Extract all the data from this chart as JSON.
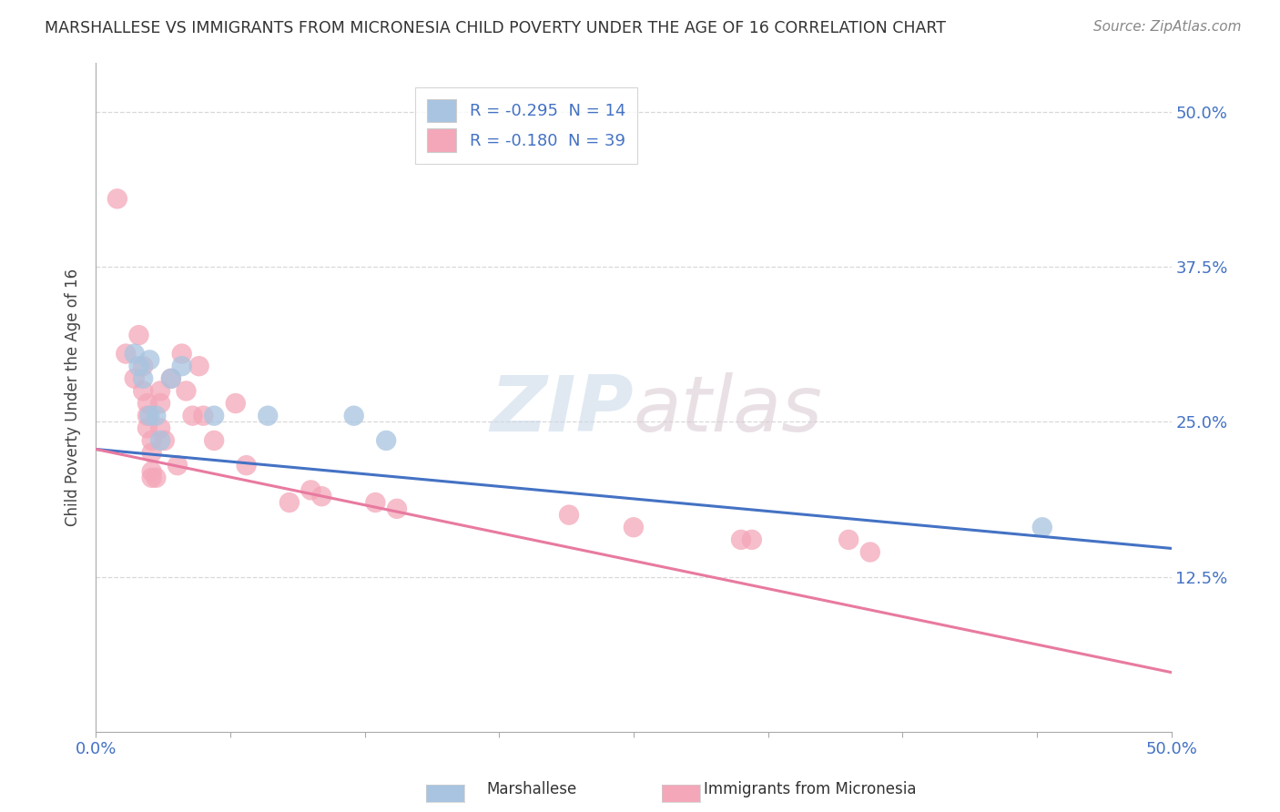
{
  "title": "MARSHALLESE VS IMMIGRANTS FROM MICRONESIA CHILD POVERTY UNDER THE AGE OF 16 CORRELATION CHART",
  "source": "Source: ZipAtlas.com",
  "ylabel": "Child Poverty Under the Age of 16",
  "ytick_labels": [
    "50.0%",
    "37.5%",
    "25.0%",
    "12.5%"
  ],
  "ytick_values": [
    0.5,
    0.375,
    0.25,
    0.125
  ],
  "xlim": [
    0.0,
    0.5
  ],
  "ylim": [
    0.0,
    0.54
  ],
  "watermark_zip": "ZIP",
  "watermark_atlas": "atlas",
  "legend1_label": "R = -0.295  N = 14",
  "legend2_label": "R = -0.180  N = 39",
  "color_blue": "#a8c4e0",
  "color_pink": "#f4a7b9",
  "line_blue": "#4472c4",
  "line_pink": "#e87aa0",
  "blue_scatter": [
    [
      0.018,
      0.305
    ],
    [
      0.02,
      0.295
    ],
    [
      0.022,
      0.285
    ],
    [
      0.025,
      0.3
    ],
    [
      0.025,
      0.255
    ],
    [
      0.028,
      0.255
    ],
    [
      0.03,
      0.235
    ],
    [
      0.035,
      0.285
    ],
    [
      0.04,
      0.295
    ],
    [
      0.055,
      0.255
    ],
    [
      0.08,
      0.255
    ],
    [
      0.12,
      0.255
    ],
    [
      0.135,
      0.235
    ],
    [
      0.44,
      0.165
    ]
  ],
  "pink_scatter": [
    [
      0.01,
      0.43
    ],
    [
      0.014,
      0.305
    ],
    [
      0.018,
      0.285
    ],
    [
      0.02,
      0.32
    ],
    [
      0.022,
      0.295
    ],
    [
      0.022,
      0.275
    ],
    [
      0.024,
      0.265
    ],
    [
      0.024,
      0.255
    ],
    [
      0.024,
      0.245
    ],
    [
      0.026,
      0.235
    ],
    [
      0.026,
      0.225
    ],
    [
      0.026,
      0.21
    ],
    [
      0.026,
      0.205
    ],
    [
      0.028,
      0.205
    ],
    [
      0.03,
      0.275
    ],
    [
      0.03,
      0.265
    ],
    [
      0.03,
      0.245
    ],
    [
      0.032,
      0.235
    ],
    [
      0.035,
      0.285
    ],
    [
      0.038,
      0.215
    ],
    [
      0.04,
      0.305
    ],
    [
      0.042,
      0.275
    ],
    [
      0.045,
      0.255
    ],
    [
      0.048,
      0.295
    ],
    [
      0.05,
      0.255
    ],
    [
      0.055,
      0.235
    ],
    [
      0.065,
      0.265
    ],
    [
      0.07,
      0.215
    ],
    [
      0.09,
      0.185
    ],
    [
      0.1,
      0.195
    ],
    [
      0.105,
      0.19
    ],
    [
      0.13,
      0.185
    ],
    [
      0.14,
      0.18
    ],
    [
      0.22,
      0.175
    ],
    [
      0.25,
      0.165
    ],
    [
      0.3,
      0.155
    ],
    [
      0.305,
      0.155
    ],
    [
      0.35,
      0.155
    ],
    [
      0.36,
      0.145
    ]
  ],
  "blue_line_x": [
    0.0,
    0.5
  ],
  "blue_line_y": [
    0.228,
    0.148
  ],
  "pink_line_x": [
    0.0,
    0.5
  ],
  "pink_line_y": [
    0.228,
    0.048
  ],
  "xtick_positions": [
    0.0,
    0.0625,
    0.125,
    0.1875,
    0.25,
    0.3125,
    0.375,
    0.4375,
    0.5
  ],
  "background_color": "#ffffff",
  "grid_color": "#d8d8d8",
  "title_color": "#333333",
  "tick_label_color": "#4472c4"
}
